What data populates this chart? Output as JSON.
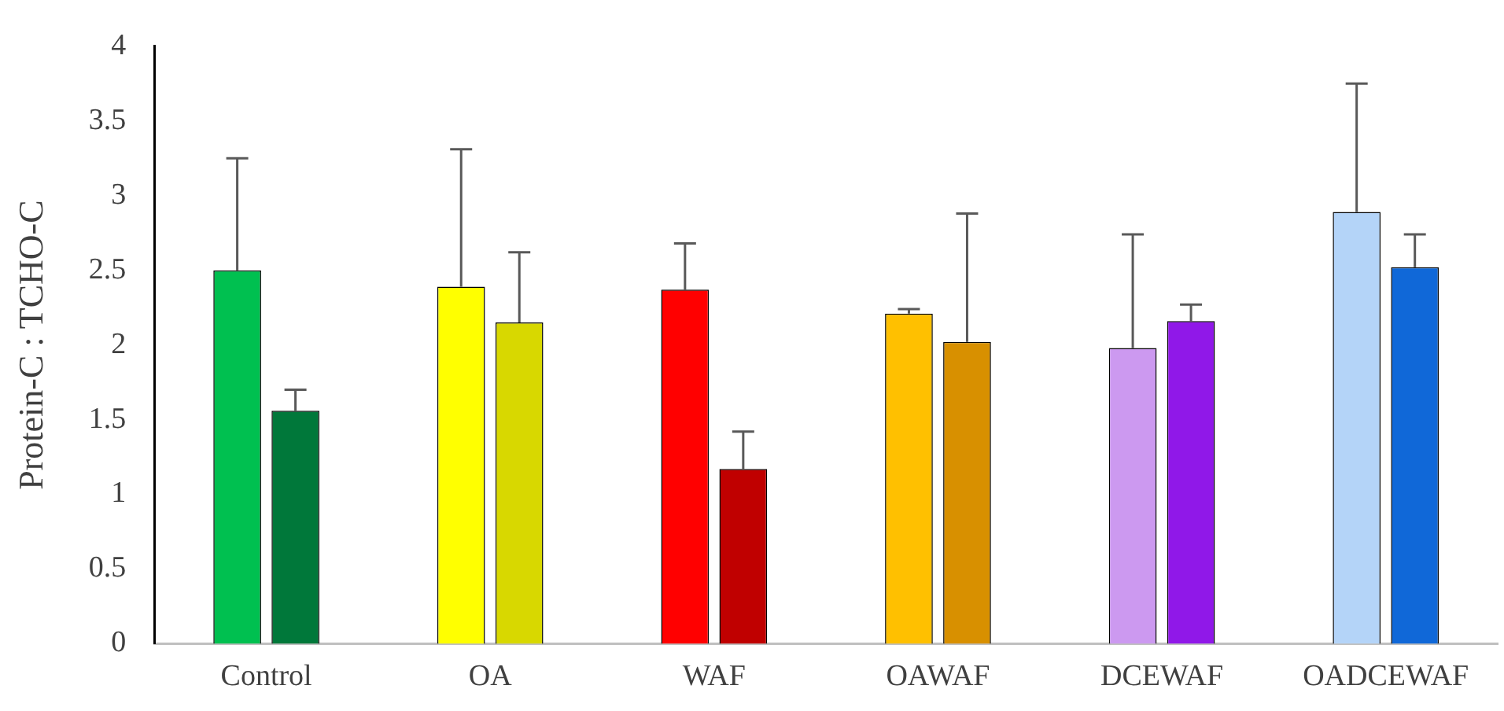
{
  "chart_data": {
    "type": "bar",
    "ylabel": "Protein-C : TCHO-C",
    "categories": [
      "Control",
      "OA",
      "WAF",
      "OAWAF",
      "DCEWAF",
      "OADCEWAF"
    ],
    "series": [
      {
        "colors": [
          "#00c050",
          "#ffff00",
          "#ff0000",
          "#ffc000",
          "#cc99f0",
          "#b4d4f8"
        ],
        "values": [
          2.5,
          2.39,
          2.37,
          2.21,
          1.98,
          2.89
        ],
        "errors": [
          [
            2.5,
            3.25
          ],
          [
            2.39,
            3.31
          ],
          [
            2.37,
            2.68
          ],
          [
            2.21,
            2.24
          ],
          [
            1.98,
            2.74
          ],
          [
            2.89,
            3.75
          ]
        ]
      },
      {
        "colors": [
          "#00783a",
          "#d8d800",
          "#c00000",
          "#d89000",
          "#9018e8",
          "#1068d8"
        ],
        "values": [
          1.56,
          2.15,
          1.17,
          2.02,
          2.16,
          2.52
        ],
        "errors": [
          [
            1.56,
            1.7
          ],
          [
            2.15,
            2.62
          ],
          [
            1.17,
            1.42
          ],
          [
            2.02,
            2.88
          ],
          [
            2.16,
            2.27
          ],
          [
            2.52,
            2.74
          ]
        ]
      }
    ],
    "ylim": [
      0,
      4
    ],
    "yticks": [
      0,
      0.5,
      1,
      1.5,
      2,
      2.5,
      3,
      3.5,
      4
    ],
    "grid": false,
    "legend": false
  }
}
